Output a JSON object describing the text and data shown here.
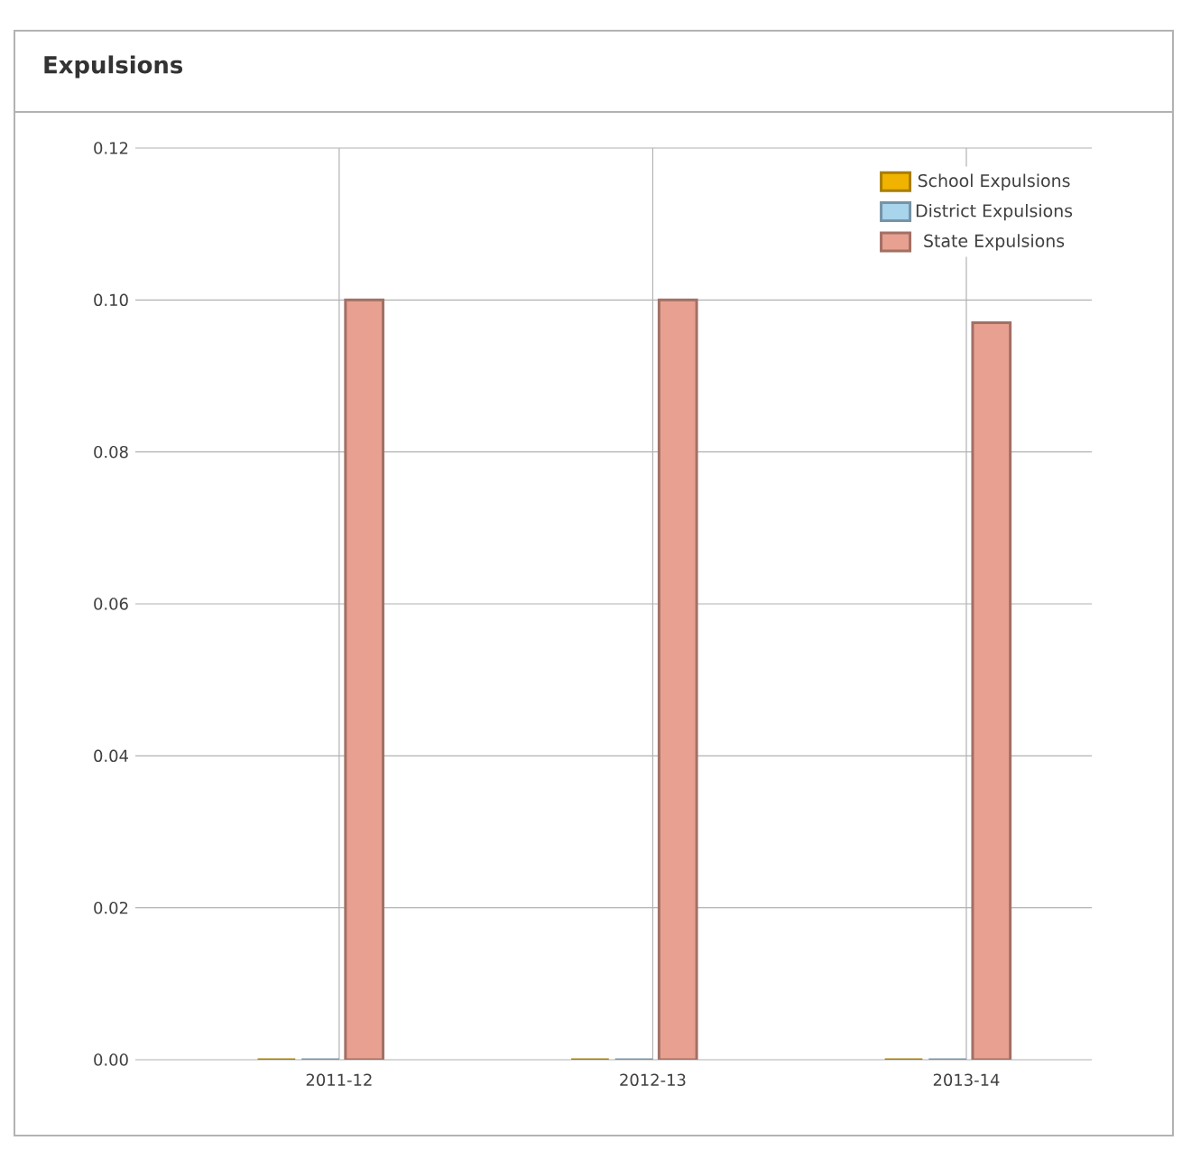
{
  "chart_data": {
    "type": "bar",
    "title": "Expulsions",
    "categories": [
      "2011-12",
      "2012-13",
      "2013-14"
    ],
    "series": [
      {
        "name": "School Expulsions",
        "color": "#f0b400",
        "values": [
          0,
          0,
          0
        ]
      },
      {
        "name": "District Expulsions",
        "color": "#a8d4ec",
        "values": [
          0,
          0,
          0
        ]
      },
      {
        "name": "State Expulsions",
        "color": "#e8a090",
        "values": [
          0.1,
          0.1,
          0.097
        ]
      }
    ],
    "ylim": [
      0,
      0.12
    ],
    "yticks": [
      {
        "value": 0,
        "label": "0.00"
      },
      0.02,
      0.04,
      0.06,
      0.08,
      {
        "value": 0.1,
        "label": "0.10"
      },
      0.12
    ],
    "grid": true,
    "legend": "top right"
  }
}
